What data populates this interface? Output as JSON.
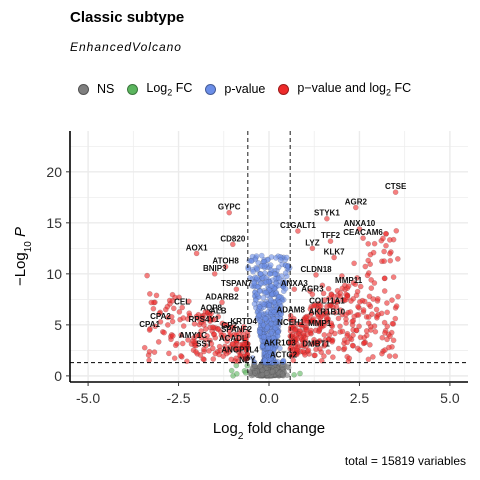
{
  "title": "Classic subtype",
  "subtitle": "EnhancedVolcano",
  "caption": "total = 15819 variables",
  "legend": [
    {
      "key": "ns",
      "label": "NS",
      "color": "#7f7f7f"
    },
    {
      "key": "fc",
      "label": "Log",
      "sub": "2",
      "suffix": " FC",
      "color": "#5bb55e"
    },
    {
      "key": "p",
      "label": "p-value",
      "color": "#6b8ee8"
    },
    {
      "key": "pfc",
      "label": "p−value and log",
      "sub": "2",
      "suffix": " FC",
      "color": "#ee2a2a"
    }
  ],
  "chart_data": {
    "type": "scatter",
    "title": "Classic subtype",
    "subtitle": "EnhancedVolcano",
    "xlabel": "Log2 fold change",
    "ylabel": "−Log10 P",
    "xlim": [
      -5.5,
      5.5
    ],
    "ylim": [
      -0.6,
      24
    ],
    "xticks": [
      "-5.0",
      "-2.5",
      "0.0",
      "2.5",
      "5.0"
    ],
    "yticks": [
      "0",
      "5",
      "10",
      "15",
      "20"
    ],
    "grid": true,
    "legend_position": "top",
    "fc_cutoff": 0.585,
    "p_cutoff_neglog10": 1.3,
    "total_variables": 15819,
    "labeled_genes": [
      {
        "gene": "CTSE",
        "x": 3.5,
        "y": 18
      },
      {
        "gene": "AGR2",
        "x": 2.4,
        "y": 16.5
      },
      {
        "gene": "STYK1",
        "x": 1.6,
        "y": 15.4
      },
      {
        "gene": "ANXA10",
        "x": 2.5,
        "y": 14.4
      },
      {
        "gene": "CEACAM6",
        "x": 2.6,
        "y": 13.5
      },
      {
        "gene": "C1GALT1",
        "x": 0.8,
        "y": 14.2
      },
      {
        "gene": "TFF2",
        "x": 1.7,
        "y": 13.2
      },
      {
        "gene": "LYZ",
        "x": 1.2,
        "y": 12.5
      },
      {
        "gene": "KLK7",
        "x": 1.8,
        "y": 11.6
      },
      {
        "gene": "CLDN18",
        "x": 1.3,
        "y": 9.9
      },
      {
        "gene": "MMP11",
        "x": 2.2,
        "y": 8.8
      },
      {
        "gene": "AGR3",
        "x": 1.2,
        "y": 8.0
      },
      {
        "gene": "COL11A1",
        "x": 1.6,
        "y": 6.8
      },
      {
        "gene": "AKR1B10",
        "x": 1.6,
        "y": 5.7
      },
      {
        "gene": "MMP1",
        "x": 1.4,
        "y": 4.6
      },
      {
        "gene": "DMBT1",
        "x": 1.3,
        "y": 2.6
      },
      {
        "gene": "ACTG2",
        "x": 0.4,
        "y": 1.5
      },
      {
        "gene": "ANXA3",
        "x": 0.7,
        "y": 8.5
      },
      {
        "gene": "ADAM8",
        "x": 0.6,
        "y": 5.9
      },
      {
        "gene": "NCEH1",
        "x": 0.6,
        "y": 4.7
      },
      {
        "gene": "AKR1C3",
        "x": 0.3,
        "y": 2.7
      },
      {
        "gene": "GYPC",
        "x": -1.1,
        "y": 16.0
      },
      {
        "gene": "CD820",
        "x": -1.0,
        "y": 12.9
      },
      {
        "gene": "AOX1",
        "x": -2.0,
        "y": 12.0
      },
      {
        "gene": "ATOH8",
        "x": -1.2,
        "y": 10.7
      },
      {
        "gene": "BNIP3",
        "x": -1.5,
        "y": 10.0
      },
      {
        "gene": "TSPAN7",
        "x": -0.9,
        "y": 8.5
      },
      {
        "gene": "ADARB2",
        "x": -1.3,
        "y": 7.2
      },
      {
        "gene": "AQP8",
        "x": -1.6,
        "y": 6.1
      },
      {
        "gene": "ALB",
        "x": -1.4,
        "y": 5.8
      },
      {
        "gene": "CEL",
        "x": -2.4,
        "y": 6.7
      },
      {
        "gene": "CPA2",
        "x": -3.0,
        "y": 5.3
      },
      {
        "gene": "CPA1",
        "x": -3.3,
        "y": 4.5
      },
      {
        "gene": "RPS4Y1",
        "x": -1.8,
        "y": 5.0
      },
      {
        "gene": "AMY1C",
        "x": -2.1,
        "y": 3.4
      },
      {
        "gene": "SST",
        "x": -1.8,
        "y": 2.6
      },
      {
        "gene": "GP2",
        "x": -1.1,
        "y": 4.4
      },
      {
        "gene": "KRTD4",
        "x": -0.7,
        "y": 4.8
      },
      {
        "gene": "SPANF2",
        "x": -0.9,
        "y": 4.0
      },
      {
        "gene": "ACADL",
        "x": -1.0,
        "y": 3.1
      },
      {
        "gene": "ANGPTL4",
        "x": -0.8,
        "y": 2.0
      },
      {
        "gene": "NPY",
        "x": -0.6,
        "y": 1.0
      }
    ]
  }
}
